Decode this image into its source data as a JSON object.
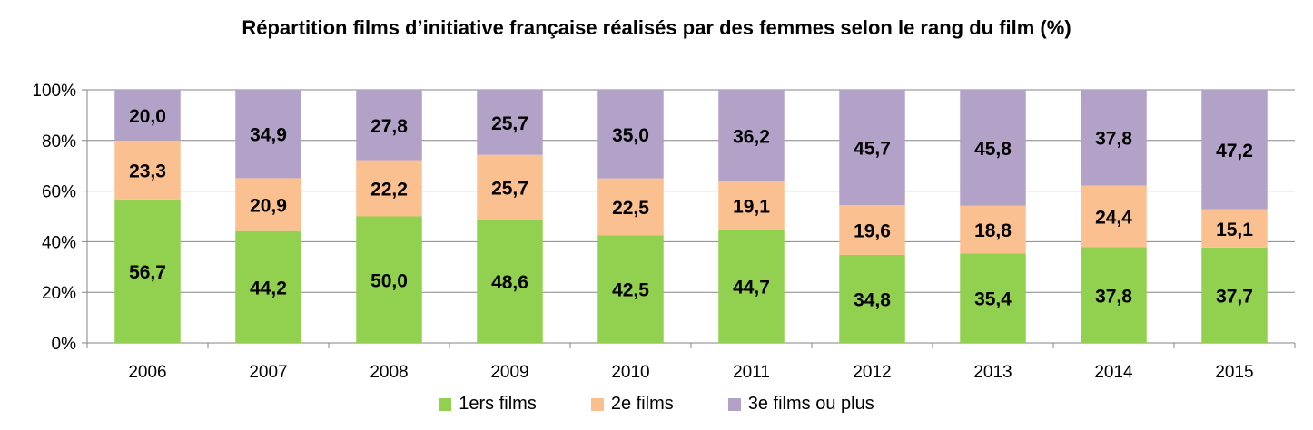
{
  "chart_data": {
    "type": "bar",
    "stacked": true,
    "title": "Répartition films d’initiative française réalisés par des femmes selon le rang du film (%)",
    "categories": [
      "2006",
      "2007",
      "2008",
      "2009",
      "2010",
      "2011",
      "2012",
      "2013",
      "2014",
      "2015"
    ],
    "series": [
      {
        "name": "1ers films",
        "color": "#92d050",
        "values": [
          56.7,
          44.2,
          50.0,
          48.6,
          42.5,
          44.7,
          34.8,
          35.4,
          37.8,
          37.7
        ]
      },
      {
        "name": "2e films",
        "color": "#fac090",
        "values": [
          23.3,
          20.9,
          22.2,
          25.7,
          22.5,
          19.1,
          19.6,
          18.8,
          24.4,
          15.1
        ]
      },
      {
        "name": "3e films ou plus",
        "color": "#b3a2c7",
        "values": [
          20.0,
          34.9,
          27.8,
          25.7,
          35.0,
          36.2,
          45.7,
          45.8,
          37.8,
          47.2
        ]
      }
    ],
    "value_labels": [
      [
        "56,7",
        "44,2",
        "50,0",
        "48,6",
        "42,5",
        "44,7",
        "34,8",
        "35,4",
        "37,8",
        "37,7"
      ],
      [
        "23,3",
        "20,9",
        "22,2",
        "25,7",
        "22,5",
        "19,1",
        "19,6",
        "18,8",
        "24,4",
        "15,1"
      ],
      [
        "20,0",
        "34,9",
        "27,8",
        "25,7",
        "35,0",
        "36,2",
        "45,7",
        "45,8",
        "37,8",
        "47,2"
      ]
    ],
    "yticks": [
      "0%",
      "20%",
      "40%",
      "60%",
      "80%",
      "100%"
    ],
    "ylim": [
      0,
      100
    ],
    "grid": true,
    "legend_position": "bottom"
  }
}
